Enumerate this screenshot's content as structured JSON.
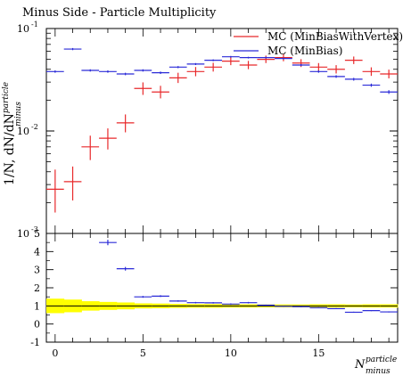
{
  "chart_data": {
    "type": "scatter",
    "title": "Minus Side - Particle Multiplicity",
    "ylabel_main": "1/N, dN/dN",
    "ylabel_sup": "particle",
    "ylabel_sub": "minus",
    "xlabel_main": "N",
    "xlabel_sup": "particle",
    "xlabel_sub": "minus",
    "x_range": [
      -0.5,
      19.5
    ],
    "x_ticks": [
      "0",
      "5",
      "10",
      "15"
    ],
    "y_scale": "log",
    "y_range": [
      0.001,
      0.1
    ],
    "y_ticks": [
      "10",
      "10",
      "10"
    ],
    "y_tick_exponents": [
      "-1",
      "-2",
      "-3"
    ],
    "ratio_range": [
      -1,
      5
    ],
    "ratio_ticks": [
      "5",
      "4",
      "3",
      "2",
      "1",
      "0",
      "-1"
    ],
    "legend_position": "top-right",
    "series": [
      {
        "name": "MC (MinBiasWithVertex)",
        "color": "#e8292b",
        "x": [
          0,
          1,
          2,
          3,
          4,
          5,
          6,
          7,
          8,
          9,
          10,
          11,
          12,
          13,
          14,
          15,
          16,
          17,
          18,
          19
        ],
        "y": [
          0.0027,
          0.0032,
          0.007,
          0.0085,
          0.012,
          0.026,
          0.024,
          0.033,
          0.038,
          0.042,
          0.048,
          0.044,
          0.05,
          0.052,
          0.046,
          0.042,
          0.04,
          0.049,
          0.038,
          0.036
        ],
        "err_low": [
          0.0011,
          0.0011,
          0.0018,
          0.0019,
          0.0023,
          0.0035,
          0.0032,
          0.0036,
          0.0038,
          0.004,
          0.0041,
          0.0039,
          0.004,
          0.0041,
          0.0039,
          0.0037,
          0.0036,
          0.004,
          0.0035,
          0.0034
        ],
        "err_high": [
          0.0015,
          0.0013,
          0.002,
          0.0021,
          0.0025,
          0.0038,
          0.0036,
          0.004,
          0.0041,
          0.0043,
          0.0045,
          0.0043,
          0.0044,
          0.0045,
          0.0042,
          0.004,
          0.0039,
          0.0043,
          0.0038,
          0.0037
        ]
      },
      {
        "name": "MC (MinBias)",
        "color": "#2b2bd8",
        "x": [
          0,
          1,
          2,
          3,
          4,
          5,
          6,
          7,
          8,
          9,
          10,
          11,
          12,
          13,
          14,
          15,
          16,
          17,
          18,
          19
        ],
        "y": [
          0.038,
          0.063,
          0.039,
          0.038,
          0.036,
          0.039,
          0.037,
          0.042,
          0.045,
          0.049,
          0.053,
          0.052,
          0.052,
          0.051,
          0.044,
          0.038,
          0.034,
          0.032,
          0.028,
          0.024
        ],
        "err_low": [
          0.001,
          0.0015,
          0.001,
          0.001,
          0.001,
          0.001,
          0.001,
          0.001,
          0.001,
          0.001,
          0.001,
          0.001,
          0.001,
          0.001,
          0.001,
          0.001,
          0.001,
          0.001,
          0.001,
          0.001
        ],
        "err_high": [
          0.001,
          0.0015,
          0.001,
          0.001,
          0.001,
          0.001,
          0.001,
          0.001,
          0.001,
          0.001,
          0.001,
          0.001,
          0.001,
          0.001,
          0.001,
          0.001,
          0.001,
          0.001,
          0.001,
          0.001
        ]
      }
    ],
    "ratio": {
      "reference_band": {
        "color": "#ffff00",
        "x": [
          0,
          1,
          2,
          3,
          4,
          5,
          6,
          7,
          8,
          9,
          10,
          11,
          12,
          13,
          14,
          15,
          16,
          17,
          18,
          19
        ],
        "err": [
          0.4,
          0.35,
          0.26,
          0.22,
          0.19,
          0.14,
          0.13,
          0.11,
          0.1,
          0.1,
          0.09,
          0.09,
          0.08,
          0.08,
          0.08,
          0.09,
          0.09,
          0.08,
          0.09,
          0.09
        ]
      },
      "series": [
        {
          "name": "MC (MinBias)",
          "color": "#2b2bd8",
          "x": [
            3,
            4,
            5,
            6,
            7,
            8,
            9,
            10,
            11,
            12,
            13,
            14,
            15,
            16,
            17,
            18,
            19
          ],
          "y": [
            4.5,
            3.05,
            1.5,
            1.54,
            1.27,
            1.18,
            1.17,
            1.1,
            1.18,
            1.04,
            0.98,
            0.96,
            0.9,
            0.85,
            0.65,
            0.74,
            0.67
          ],
          "err": [
            0.15,
            0.1,
            0.05,
            0.05,
            0.04,
            0.04,
            0.04,
            0.04,
            0.04,
            0.03,
            0.03,
            0.03,
            0.03,
            0.03,
            0.03,
            0.03,
            0.03
          ]
        }
      ]
    }
  }
}
